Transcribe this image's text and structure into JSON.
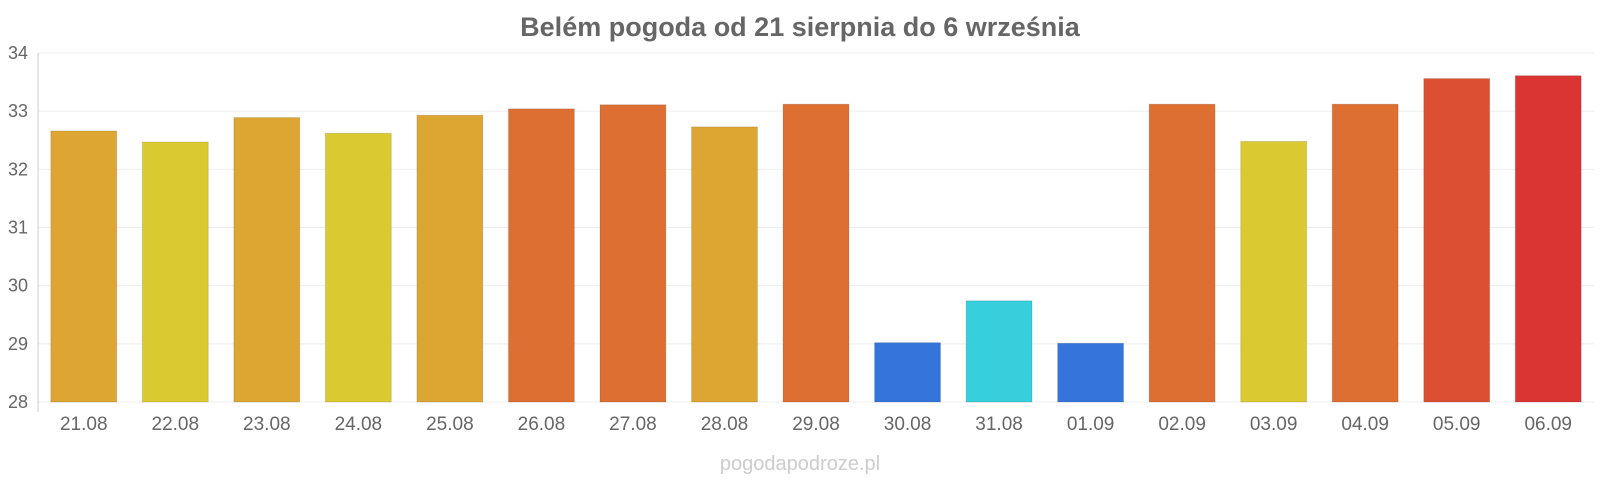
{
  "chart_data": {
    "type": "bar",
    "title": "Belém pogoda od 21 sierpnia do 6 września",
    "xlabel": "",
    "ylabel": "",
    "ylim": [
      28,
      34
    ],
    "yticks": [
      28,
      29,
      30,
      31,
      32,
      33,
      34
    ],
    "grid": true,
    "legend": "none",
    "categories": [
      "21.08",
      "22.08",
      "23.08",
      "24.08",
      "25.08",
      "26.08",
      "27.08",
      "28.08",
      "29.08",
      "30.08",
      "31.08",
      "01.09",
      "02.09",
      "03.09",
      "04.09",
      "05.09",
      "06.09"
    ],
    "values": [
      32.66,
      32.47,
      32.89,
      32.62,
      32.93,
      33.04,
      33.11,
      32.73,
      33.12,
      29.02,
      29.74,
      29.01,
      33.12,
      32.48,
      33.12,
      33.56,
      33.61
    ],
    "colors": [
      "#dda632",
      "#dbc932",
      "#dda632",
      "#dbc932",
      "#dda632",
      "#de6f32",
      "#de6f32",
      "#dda632",
      "#de6f32",
      "#3575db",
      "#36cfdb",
      "#3575db",
      "#de6f32",
      "#dbc932",
      "#de6f32",
      "#dc4f32",
      "#da3532"
    ]
  },
  "watermark": "pogodapodroze.pl"
}
